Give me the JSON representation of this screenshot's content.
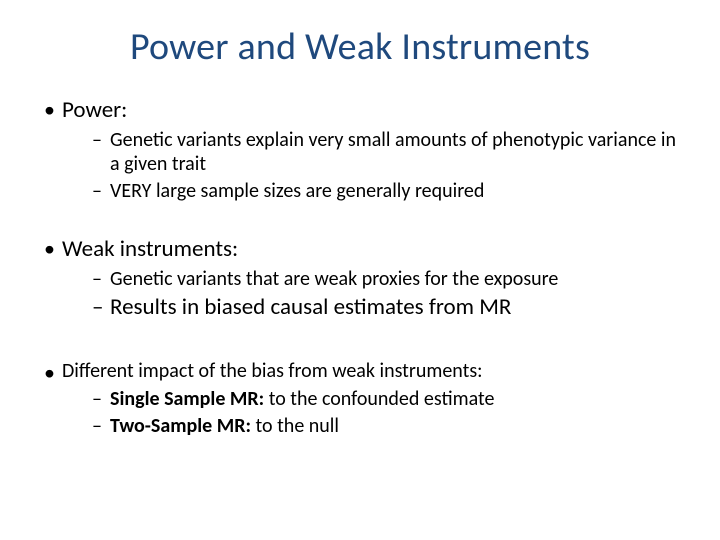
{
  "title": "Power and Weak Instruments",
  "colors": {
    "title_color": "#1f497d",
    "text_color": "#000000",
    "background": "#ffffff"
  },
  "typography": {
    "title_fontsize_pt": 28,
    "body_fontsize_pt": 18,
    "sub_fontsize_pt": 16,
    "font_family": "Calibri"
  },
  "bullets": {
    "power": {
      "label": "Power:",
      "subs": [
        "Genetic variants explain very small amounts of phenotypic variance in a given trait",
        "VERY large sample sizes are generally required"
      ]
    },
    "weak": {
      "label": "Weak instruments:",
      "subs": [
        "Genetic variants that are weak proxies for the exposure",
        "Results in biased causal estimates from MR"
      ]
    },
    "impact": {
      "label": "Different impact of the bias from weak instruments:",
      "subs": [
        {
          "bold": "Single Sample MR:",
          "rest": " to the confounded estimate"
        },
        {
          "bold": "Two-Sample MR:",
          "rest": " to the null"
        }
      ]
    }
  }
}
